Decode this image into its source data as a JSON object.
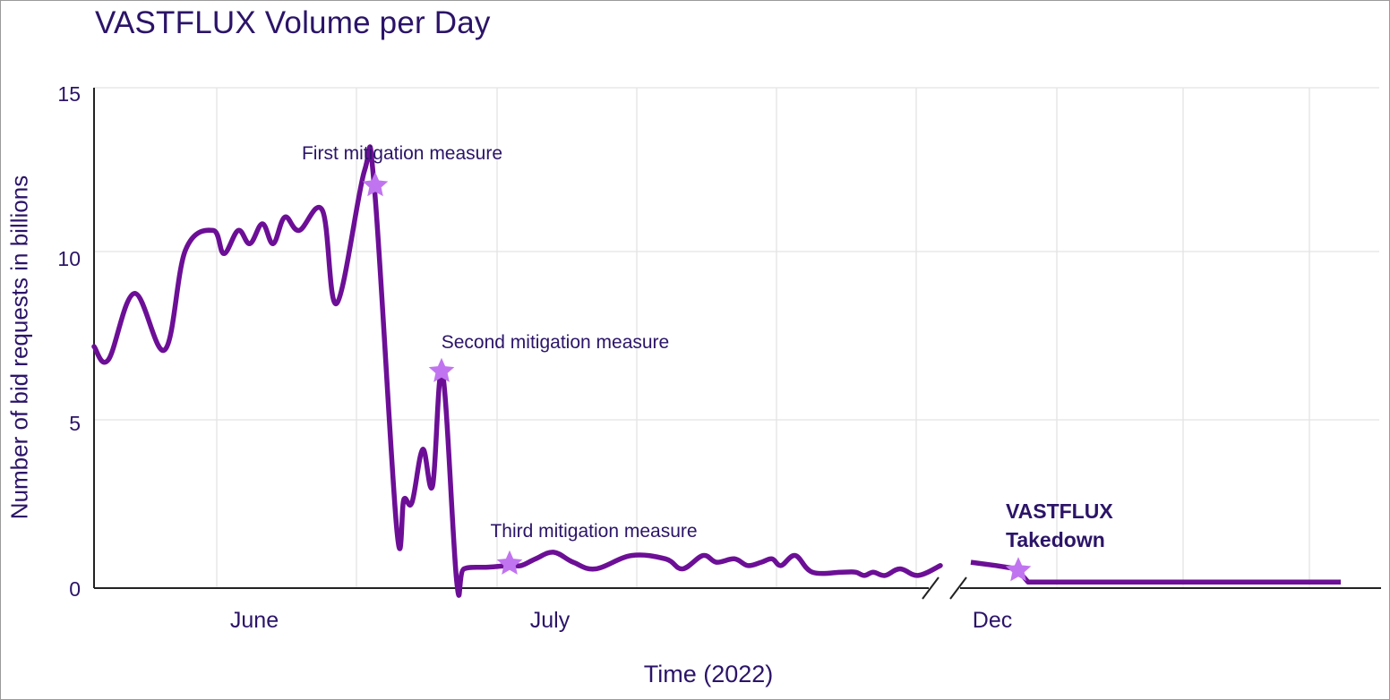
{
  "chart_data": {
    "type": "line",
    "title": "VASTFLUX Volume per Day",
    "xlabel": "Time (2022)",
    "ylabel": "Number of bid requests in billions",
    "ylim": [
      0,
      15
    ],
    "yticks": [
      "0",
      "5",
      "10",
      "15"
    ],
    "xticks": [
      "June",
      "July",
      "Dec"
    ],
    "grid": true,
    "axis_break": "between July and Dec",
    "colors": {
      "line": "#6c0f96",
      "marker": "#c174f0",
      "text": "#2b1468",
      "grid": "#e1e1e1"
    },
    "series": [
      {
        "values_before_break": [
          7.2,
          6.8,
          8.8,
          7.1,
          10.1,
          10.7,
          10.0,
          10.7,
          10.3,
          10.9,
          10.3,
          11.1,
          10.7,
          11.3,
          8.5,
          12.5,
          12.0,
          1.7,
          2.6,
          2.5,
          4.1,
          3.0,
          6.4,
          0.1,
          0.5,
          0.55,
          0.6,
          0.6,
          0.8,
          1.0,
          0.7,
          0.5,
          0.9,
          0.8,
          0.5,
          0.9,
          0.7,
          0.8,
          0.6,
          0.7,
          0.8,
          0.6,
          0.9,
          0.4,
          0.4,
          0.4,
          0.3,
          0.4,
          0.3,
          0.5,
          0.3,
          0.6
        ],
        "values_after_break": [
          0.7,
          0.6,
          0.5,
          0.1,
          0.1,
          0.1,
          0.1,
          0.1,
          0.1
        ]
      }
    ],
    "annotations": [
      {
        "label": "First mitigation measure",
        "x_after": "June",
        "y": 12.0
      },
      {
        "label": "Second mitigation measure",
        "x_after": "June",
        "y": 6.4
      },
      {
        "label": "Third mitigation measure",
        "x_after": "June",
        "y": 0.6
      },
      {
        "label_line1": "VASTFLUX",
        "label_line2": "Takedown",
        "x_after": "Dec",
        "y": 0.4
      }
    ]
  }
}
